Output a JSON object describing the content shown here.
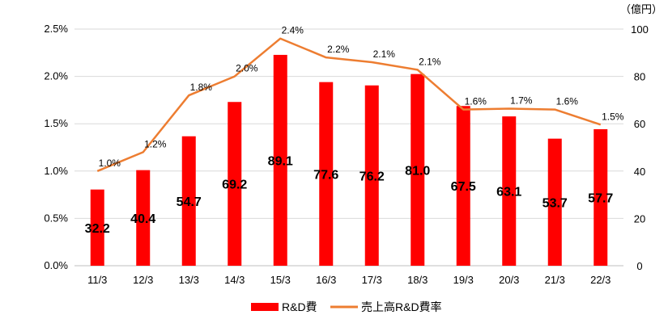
{
  "chart_data": {
    "type": "bar+line",
    "categories": [
      "11/3",
      "12/3",
      "13/3",
      "14/3",
      "15/3",
      "16/3",
      "17/3",
      "18/3",
      "19/3",
      "20/3",
      "21/3",
      "22/3"
    ],
    "series": [
      {
        "name": "R&D費",
        "type": "bar",
        "axis": "right",
        "color": "#ff0000",
        "values": [
          32.2,
          40.4,
          54.7,
          69.2,
          89.1,
          77.6,
          76.2,
          81.0,
          67.5,
          63.1,
          53.7,
          57.7
        ],
        "labels": [
          "32.2",
          "40.4",
          "54.7",
          "69.2",
          "89.1",
          "77.6",
          "76.2",
          "81.0",
          "67.5",
          "63.1",
          "53.7",
          "57.7"
        ]
      },
      {
        "name": "売上高R&D費率",
        "type": "line",
        "axis": "left",
        "color": "#ed7d31",
        "values": [
          1.0,
          1.2,
          1.8,
          2.0,
          2.4,
          2.2,
          2.15,
          2.07,
          1.65,
          1.66,
          1.65,
          1.49
        ],
        "labels": [
          "1.0%",
          "1.2%",
          "1.8%",
          "2.0%",
          "2.4%",
          "2.2%",
          "2.1%",
          "2.1%",
          "1.6%",
          "1.7%",
          "1.6%",
          "1.5%"
        ]
      }
    ],
    "left_axis": {
      "min": 0,
      "max": 2.5,
      "ticks": [
        "0.0%",
        "0.5%",
        "1.0%",
        "1.5%",
        "2.0%",
        "2.5%"
      ]
    },
    "right_axis": {
      "min": 0,
      "max": 100,
      "ticks": [
        "0",
        "20",
        "40",
        "60",
        "80",
        "100"
      ],
      "unit": "（億円）"
    },
    "grid": true,
    "legend_position": "bottom"
  }
}
